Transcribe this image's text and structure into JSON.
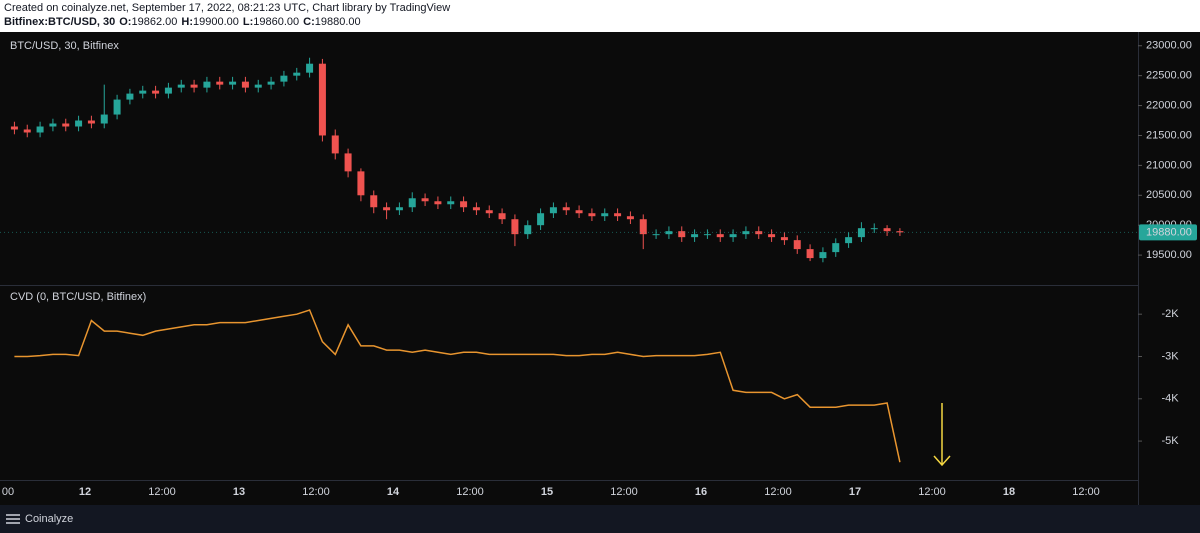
{
  "header": {
    "created": "Created on coinalyze.net, September 17, 2022, 08:21:23 UTC, Chart library by TradingView",
    "symbol": "Bitfinex:BTC/USD, 30",
    "ohlc": [
      {
        "key": "O:",
        "value": "19862.00"
      },
      {
        "key": "H:",
        "value": "19900.00"
      },
      {
        "key": "L:",
        "value": "19860.00"
      },
      {
        "key": "C:",
        "value": "19880.00"
      }
    ]
  },
  "footer": {
    "brand": "Coinalyze"
  },
  "time_axis": {
    "labels": [
      "00",
      "12",
      "12:00",
      "13",
      "12:00",
      "14",
      "12:00",
      "15",
      "12:00",
      "16",
      "12:00",
      "17",
      "12:00",
      "18",
      "12:00"
    ]
  },
  "chart_data": [
    {
      "type": "candlestick",
      "title": "BTC/USD, 30, Bitfinex",
      "up_color": "#26a69a",
      "down_color": "#ef5350",
      "open": [
        21650,
        21600,
        21550,
        21650,
        21700,
        21650,
        21750,
        21700,
        21850,
        22100,
        22200,
        22250,
        22200,
        22300,
        22350,
        22300,
        22400,
        22350,
        22400,
        22300,
        22350,
        22400,
        22500,
        22550,
        22700,
        21500,
        21200,
        20900,
        20500,
        20300,
        20250,
        20300,
        20450,
        20400,
        20350,
        20400,
        20300,
        20250,
        20200,
        20100,
        19850,
        20000,
        20200,
        20300,
        20250,
        20200,
        20150,
        20200,
        20150,
        20100,
        19850,
        19850,
        19900,
        19800,
        19850,
        19850,
        19800,
        19850,
        19900,
        19850,
        19800,
        19750,
        19600,
        19450,
        19550,
        19700,
        19800,
        19950,
        19950,
        19900
      ],
      "high": [
        21730,
        21680,
        21730,
        21780,
        21780,
        21830,
        21830,
        22350,
        22180,
        22280,
        22330,
        22330,
        22380,
        22430,
        22430,
        22480,
        22480,
        22480,
        22480,
        22430,
        22480,
        22580,
        22630,
        22800,
        22780,
        21600,
        21280,
        20950,
        20580,
        20380,
        20380,
        20550,
        20530,
        20480,
        20480,
        20480,
        20380,
        20330,
        20280,
        20180,
        20080,
        20280,
        20380,
        20380,
        20330,
        20280,
        20280,
        20280,
        20230,
        20180,
        19930,
        19980,
        19980,
        19930,
        19930,
        19930,
        19930,
        19980,
        19980,
        19930,
        19880,
        19830,
        19680,
        19630,
        19780,
        19880,
        20050,
        20030,
        20000,
        19950
      ],
      "low": [
        21520,
        21470,
        21470,
        21570,
        21570,
        21570,
        21620,
        21620,
        21770,
        22020,
        22120,
        22120,
        22120,
        22220,
        22220,
        22220,
        22270,
        22270,
        22220,
        22220,
        22270,
        22320,
        22420,
        22470,
        21400,
        21100,
        20800,
        20400,
        20200,
        20100,
        20170,
        20220,
        20320,
        20270,
        20270,
        20220,
        20170,
        20120,
        20020,
        19650,
        19770,
        19920,
        20120,
        20170,
        20120,
        20070,
        20070,
        20070,
        20020,
        19600,
        19770,
        19770,
        19720,
        19720,
        19770,
        19720,
        19720,
        19770,
        19770,
        19720,
        19670,
        19520,
        19400,
        19380,
        19470,
        19620,
        19720,
        19870,
        19820,
        19820
      ],
      "close": [
        21600,
        21550,
        21650,
        21700,
        21650,
        21750,
        21700,
        21850,
        22100,
        22200,
        22250,
        22200,
        22300,
        22350,
        22300,
        22400,
        22350,
        22400,
        22300,
        22350,
        22400,
        22500,
        22550,
        22700,
        21500,
        21200,
        20900,
        20500,
        20300,
        20250,
        20300,
        20450,
        20400,
        20350,
        20400,
        20300,
        20250,
        20200,
        20100,
        19850,
        20000,
        20200,
        20300,
        20250,
        20200,
        20150,
        20200,
        20150,
        20100,
        19850,
        19850,
        19900,
        19800,
        19850,
        19850,
        19800,
        19850,
        19900,
        19850,
        19800,
        19750,
        19600,
        19450,
        19550,
        19700,
        19800,
        19950,
        19950,
        19900,
        19880
      ],
      "ylim": [
        19000,
        23230
      ],
      "yticks": [
        {
          "value": 19500,
          "label": "19500.00"
        },
        {
          "value": 20000,
          "label": "20000.00"
        },
        {
          "value": 20500,
          "label": "20500.00"
        },
        {
          "value": 21000,
          "label": "21000.00"
        },
        {
          "value": 21500,
          "label": "21500.00"
        },
        {
          "value": 22000,
          "label": "22000.00"
        },
        {
          "value": 22500,
          "label": "22500.00"
        },
        {
          "value": 23000,
          "label": "23000.00"
        }
      ],
      "last_price": {
        "value": 19880,
        "label": "19880.00"
      },
      "grid": false
    },
    {
      "type": "line",
      "title": "CVD (0, BTC/USD, Bitfinex)",
      "series": [
        {
          "color": "#e8952f",
          "values": [
            -3000,
            -3000,
            -2980,
            -2950,
            -2950,
            -2980,
            -2150,
            -2400,
            -2400,
            -2450,
            -2500,
            -2400,
            -2350,
            -2300,
            -2250,
            -2250,
            -2200,
            -2200,
            -2200,
            -2150,
            -2100,
            -2050,
            -2000,
            -1900,
            -2650,
            -2950,
            -2250,
            -2750,
            -2750,
            -2850,
            -2850,
            -2900,
            -2850,
            -2900,
            -2950,
            -2900,
            -2900,
            -2950,
            -2950,
            -2950,
            -2950,
            -2950,
            -2950,
            -2980,
            -2980,
            -2950,
            -2950,
            -2900,
            -2950,
            -3000,
            -2980,
            -2980,
            -2980,
            -2980,
            -2950,
            -2900,
            -3800,
            -3850,
            -3850,
            -3850,
            -4000,
            -3900,
            -4200,
            -4200,
            -4200,
            -4150,
            -4150,
            -4150,
            -4100,
            -5500
          ]
        }
      ],
      "ylim": [
        -5920,
        -1310
      ],
      "yticks": [
        {
          "value": -5000,
          "label": "-5K"
        },
        {
          "value": -4000,
          "label": "-4K"
        },
        {
          "value": -3000,
          "label": "-3K"
        },
        {
          "value": -2000,
          "label": "-2K"
        }
      ],
      "grid": false
    }
  ]
}
